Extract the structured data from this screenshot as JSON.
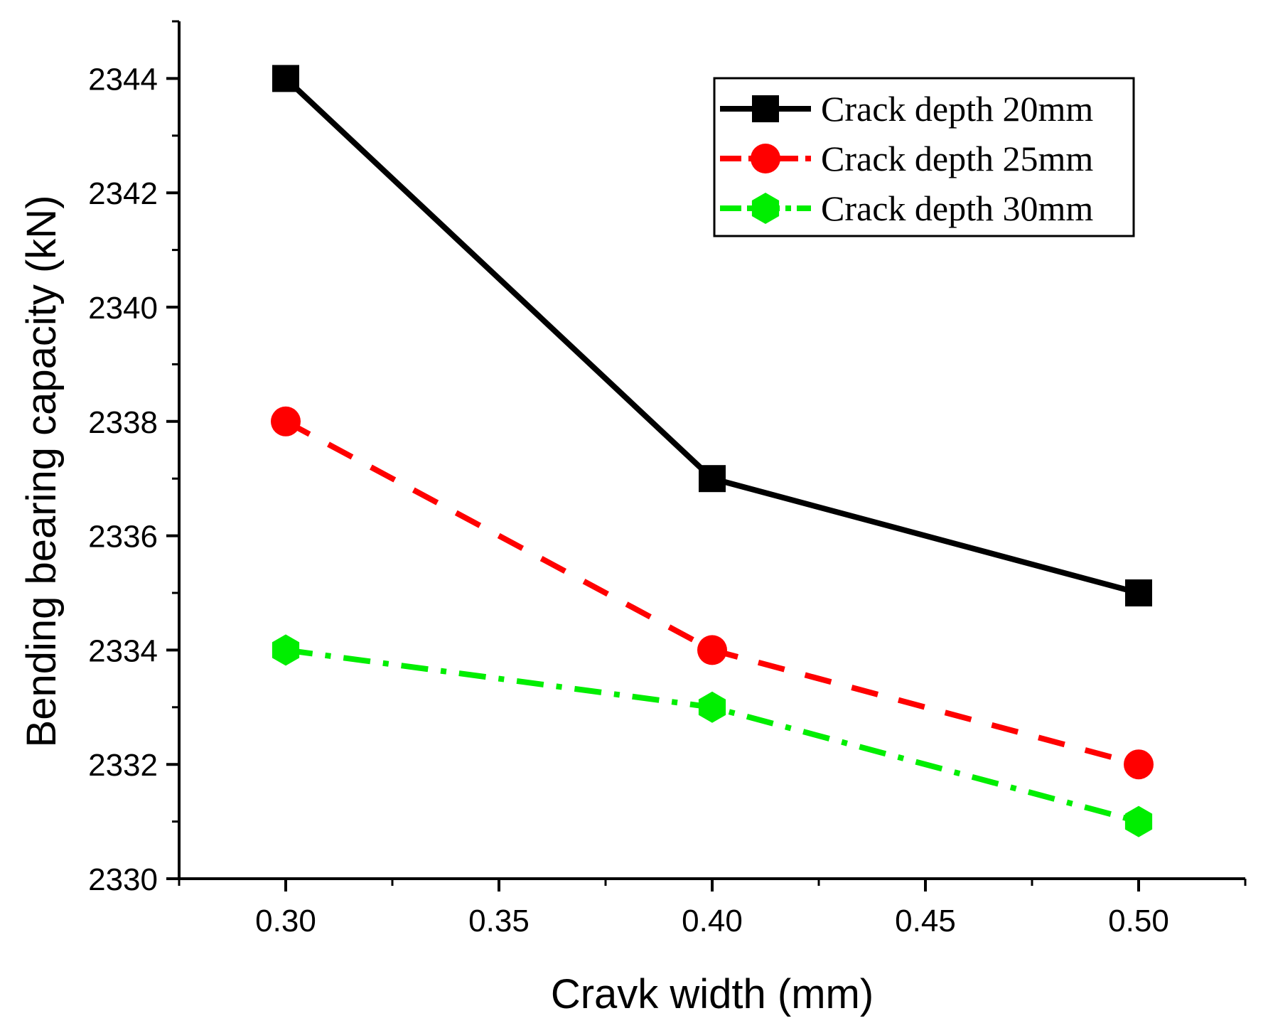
{
  "chart_data": {
    "type": "line",
    "title": "",
    "xlabel": "Cravk width (mm)",
    "ylabel": "Bending bearing capacity (kN)",
    "x": [
      0.3,
      0.4,
      0.5
    ],
    "xlim": [
      0.275,
      0.525
    ],
    "ylim": [
      2330,
      2345
    ],
    "xticks": [
      "0.30",
      "0.35",
      "0.40",
      "0.45",
      "0.50"
    ],
    "yticks": [
      "2330",
      "2332",
      "2334",
      "2336",
      "2338",
      "2340",
      "2342",
      "2344"
    ],
    "legend_position": "top-right",
    "series": [
      {
        "name": "Crack depth 20mm",
        "values": [
          2344,
          2337,
          2335
        ],
        "color": "#000000",
        "marker": "square",
        "line_style": "solid"
      },
      {
        "name": "Crack depth 25mm",
        "values": [
          2338,
          2334,
          2332
        ],
        "color": "#ff0000",
        "marker": "circle",
        "line_style": "dash"
      },
      {
        "name": "Crack depth 30mm",
        "values": [
          2334,
          2333,
          2331
        ],
        "color": "#00ee00",
        "marker": "hexagon",
        "line_style": "dash-dot"
      }
    ]
  }
}
